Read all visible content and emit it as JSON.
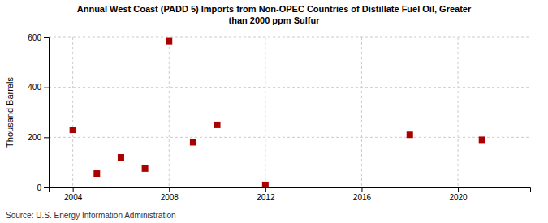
{
  "chart_data": {
    "type": "scatter",
    "title": "Annual West Coast (PADD 5) Imports from Non-OPEC Countries of Distillate Fuel Oil, Greater\nthan 2000 ppm Sulfur",
    "ylabel": "Thousand Barrels",
    "source": "Source: U.S. Energy Information Administration",
    "x": [
      2004,
      2005,
      2006,
      2007,
      2008,
      2009,
      2010,
      2012,
      2018,
      2021
    ],
    "values": [
      230,
      55,
      120,
      75,
      585,
      180,
      250,
      10,
      210,
      190
    ],
    "color": "#aa0000",
    "marker": "square",
    "xlim": [
      2003.0,
      2023.0
    ],
    "ylim": [
      0,
      600
    ],
    "xticks": [
      2004,
      2008,
      2012,
      2016,
      2020
    ],
    "yticks": [
      0,
      200,
      400,
      600
    ],
    "grid": true
  }
}
